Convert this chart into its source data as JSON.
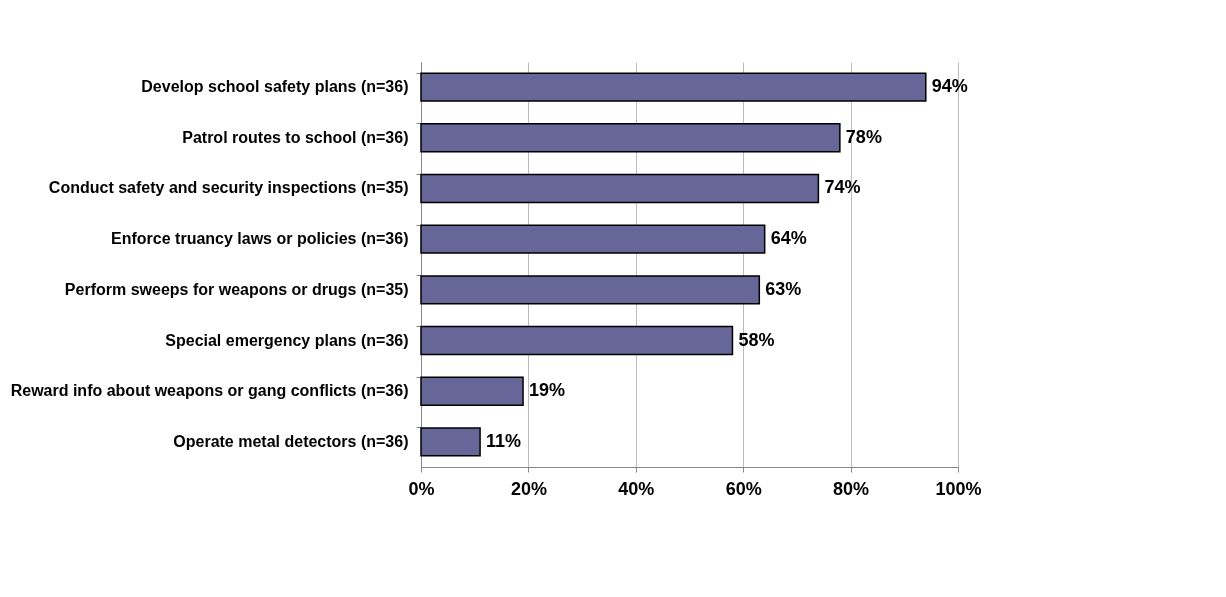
{
  "chart_data": {
    "type": "bar",
    "orientation": "horizontal",
    "categories": [
      "Develop school safety plans (n=36)",
      "Patrol routes to school (n=36)",
      "Conduct safety and security inspections (n=35)",
      "Enforce truancy laws or policies (n=36)",
      "Perform sweeps for weapons or drugs (n=35)",
      "Special emergency plans (n=36)",
      "Reward info about weapons or gang conflicts (n=36)",
      "Operate metal detectors (n=36)"
    ],
    "values": [
      94,
      78,
      74,
      64,
      63,
      58,
      19,
      11
    ],
    "value_labels": [
      "94%",
      "78%",
      "74%",
      "64%",
      "63%",
      "58%",
      "19%",
      "11%"
    ],
    "color": "#666699",
    "xlim": [
      0,
      100
    ],
    "xticks": [
      {
        "value": 0,
        "label": "0%"
      },
      {
        "value": 20,
        "label": "20%"
      },
      {
        "value": 40,
        "label": "40%"
      },
      {
        "value": 60,
        "label": "60%"
      },
      {
        "value": 80,
        "label": "80%"
      },
      {
        "value": 100,
        "label": "100%"
      }
    ],
    "grid": "x"
  }
}
